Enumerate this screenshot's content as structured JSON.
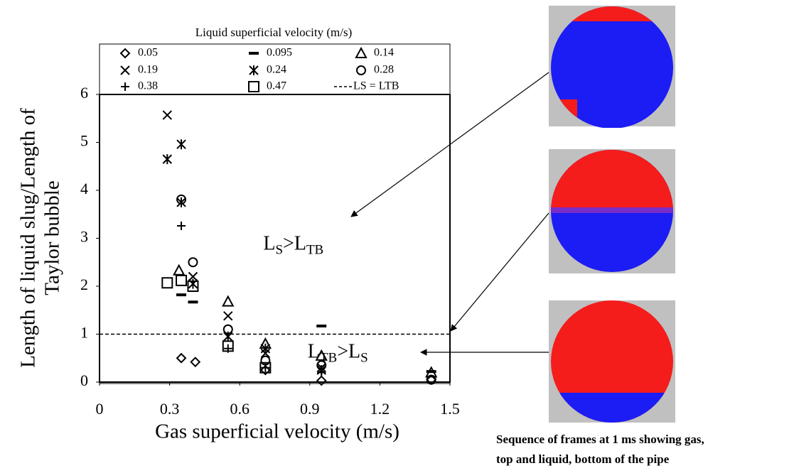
{
  "chart_data": {
    "type": "scatter",
    "xlabel": "Gas superficial velocity (m/s)",
    "ylabel": [
      "Length of liquid slug/Length of",
      "Taylor bubble"
    ],
    "legend_title": "Liquid superficial velocity (m/s)",
    "xlim": [
      0,
      1.5
    ],
    "xticks": [
      0,
      0.3,
      0.6,
      0.9,
      1.2,
      1.5
    ],
    "ylim": [
      0,
      6
    ],
    "yticks": [
      0,
      1,
      2,
      3,
      4,
      5,
      6
    ],
    "series": [
      {
        "name": "0.05",
        "marker": "diamond",
        "color": "#000000",
        "x": [
          0.35,
          0.41,
          0.71,
          0.95,
          1.42
        ],
        "values": [
          0.5,
          0.42,
          0.25,
          0.03,
          0.05
        ]
      },
      {
        "name": "0.095",
        "marker": "dash",
        "color": "#000000",
        "x": [
          0.35,
          0.4,
          0.95,
          1.42
        ],
        "values": [
          1.82,
          1.67,
          1.17,
          0.22
        ]
      },
      {
        "name": "0.14",
        "marker": "triangle",
        "color": "#000000",
        "x": [
          0.34,
          0.55,
          0.71,
          0.95,
          1.42
        ],
        "values": [
          2.33,
          1.68,
          0.8,
          0.55,
          0.2
        ]
      },
      {
        "name": "0.19",
        "marker": "x",
        "color": "#000000",
        "x": [
          0.29,
          0.4,
          0.55,
          0.71,
          0.95
        ],
        "values": [
          5.57,
          2.2,
          1.38,
          0.6,
          0.3
        ]
      },
      {
        "name": "0.24",
        "marker": "asterisk",
        "color": "#000000",
        "x": [
          0.29,
          0.35,
          0.35,
          0.4,
          0.55,
          0.71,
          0.95
        ],
        "values": [
          4.65,
          4.96,
          3.75,
          2.05,
          0.95,
          0.7,
          0.25
        ]
      },
      {
        "name": "0.28",
        "marker": "circle",
        "color": "#000000",
        "x": [
          0.35,
          0.4,
          0.55,
          0.71,
          0.95,
          1.42
        ],
        "values": [
          3.81,
          2.5,
          1.1,
          0.45,
          0.35,
          0.05
        ]
      },
      {
        "name": "0.38",
        "marker": "plus",
        "color": "#000000",
        "x": [
          0.35,
          0.55,
          0.71,
          0.95
        ],
        "values": [
          3.26,
          0.7,
          0.3,
          0.2
        ]
      },
      {
        "name": "0.47",
        "marker": "square",
        "color": "#000000",
        "x": [
          0.29,
          0.35,
          0.4,
          0.55,
          0.71
        ],
        "values": [
          2.07,
          2.12,
          2.0,
          0.75,
          0.3
        ]
      }
    ],
    "reference_line": {
      "y": 1,
      "label": "LS = LTB",
      "style": "dashed"
    },
    "annotations": [
      {
        "x": 0.83,
        "y": 2.85,
        "parts": [
          {
            "text": "L"
          },
          {
            "text": "S",
            "sub": true
          },
          {
            "text": ">L"
          },
          {
            "text": "TB",
            "sub": true
          }
        ]
      },
      {
        "x": 1.02,
        "y": 0.6,
        "parts": [
          {
            "text": "L"
          },
          {
            "text": "TB",
            "sub": true
          },
          {
            "text": ">L"
          },
          {
            "text": "S",
            "sub": true
          }
        ]
      }
    ],
    "caption": [
      "Sequence of frames at 1 ms showing gas,",
      "top and liquid, bottom of the pipe"
    ]
  }
}
